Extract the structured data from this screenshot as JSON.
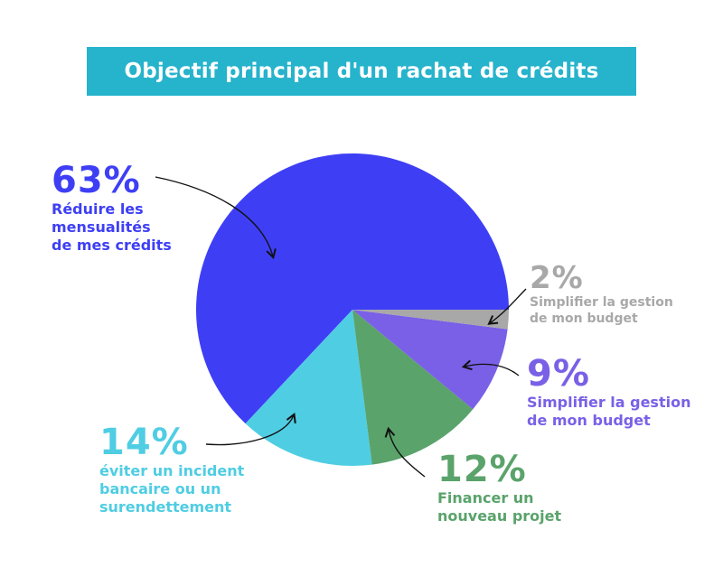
{
  "title": "Objectif principal d'un rachat de crédits",
  "colors": {
    "banner": "#26b3cc",
    "blue": "#3e3ff5",
    "cyan": "#4fcde3",
    "green": "#5aa36b",
    "purple": "#7a60e6",
    "gray": "#a8a8a8"
  },
  "chart_data": {
    "type": "pie",
    "title": "Objectif principal d'un rachat de crédits",
    "slices": [
      {
        "percent_label": "63%",
        "value": 63,
        "label_lines": [
          "Réduire les",
          "mensualités",
          "de mes crédits"
        ],
        "color": "#3e3ff5"
      },
      {
        "percent_label": "2%",
        "value": 2,
        "label_lines": [
          "Simplifier la gestion",
          "de mon budget"
        ],
        "color": "#a8a8a8"
      },
      {
        "percent_label": "9%",
        "value": 9,
        "label_lines": [
          "Simplifier la gestion",
          "de mon budget"
        ],
        "color": "#7a60e6"
      },
      {
        "percent_label": "12%",
        "value": 12,
        "label_lines": [
          "Financer un",
          "nouveau projet"
        ],
        "color": "#5aa36b"
      },
      {
        "percent_label": "14%",
        "value": 14,
        "label_lines": [
          "éviter un incident",
          "bancaire ou un",
          "surendettement"
        ],
        "color": "#4fcde3"
      }
    ]
  }
}
